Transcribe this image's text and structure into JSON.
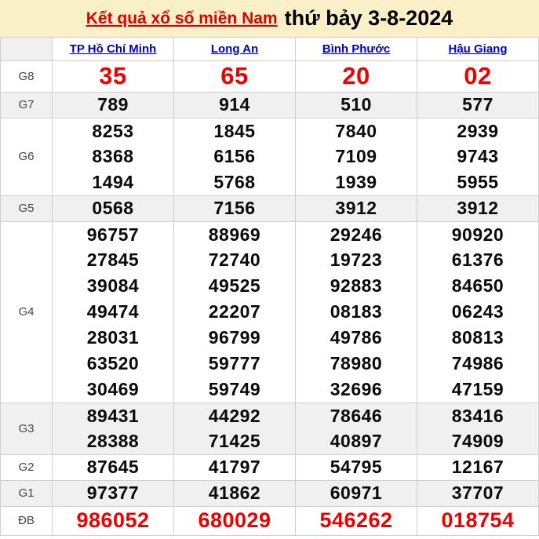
{
  "page_title": {
    "link_text": "Kết quả xổ số miền Nam",
    "date_text": "thứ bảy 3-8-2024"
  },
  "table": {
    "corner_label": "",
    "columns": [
      "TP Hồ Chí Minh",
      "Long An",
      "Bình Phước",
      "Hậu Giang"
    ],
    "prizes": [
      {
        "label": "G8",
        "emphasis": "red-large",
        "rows": [
          [
            "35",
            "65",
            "20",
            "02"
          ]
        ]
      },
      {
        "label": "G7",
        "emphasis": "none",
        "rows": [
          [
            "789",
            "914",
            "510",
            "577"
          ]
        ]
      },
      {
        "label": "G6",
        "emphasis": "none",
        "rows": [
          [
            "8253",
            "1845",
            "7840",
            "2939"
          ],
          [
            "8368",
            "6156",
            "7109",
            "9743"
          ],
          [
            "1494",
            "5768",
            "1939",
            "5955"
          ]
        ]
      },
      {
        "label": "G5",
        "emphasis": "none",
        "rows": [
          [
            "0568",
            "7156",
            "3912",
            "3912"
          ]
        ]
      },
      {
        "label": "G4",
        "emphasis": "none",
        "rows": [
          [
            "96757",
            "88969",
            "29246",
            "90920"
          ],
          [
            "27845",
            "72740",
            "19723",
            "61376"
          ],
          [
            "39084",
            "49525",
            "92883",
            "84650"
          ],
          [
            "49474",
            "22207",
            "08183",
            "06243"
          ],
          [
            "28031",
            "96799",
            "49786",
            "80813"
          ],
          [
            "63520",
            "59777",
            "78980",
            "74986"
          ],
          [
            "30469",
            "59749",
            "32696",
            "47159"
          ]
        ]
      },
      {
        "label": "G3",
        "emphasis": "none",
        "rows": [
          [
            "89431",
            "44292",
            "78646",
            "83416"
          ],
          [
            "28388",
            "71425",
            "40897",
            "74909"
          ]
        ]
      },
      {
        "label": "G2",
        "emphasis": "none",
        "rows": [
          [
            "87645",
            "41797",
            "54795",
            "12167"
          ]
        ]
      },
      {
        "label": "G1",
        "emphasis": "none",
        "rows": [
          [
            "97377",
            "41862",
            "60971",
            "37707"
          ]
        ]
      },
      {
        "label": "ĐB",
        "emphasis": "red",
        "rows": [
          [
            "986052",
            "680029",
            "546262",
            "018754"
          ]
        ]
      }
    ]
  },
  "colors": {
    "banner_bg": "#faf0c8",
    "title_red": "#e00000",
    "num_red": "#ee0000",
    "header_blue": "#0000cc",
    "stripe_gray": "#f0f0f0",
    "border_gray": "#cfcfcf",
    "num_black": "#0a0a0a",
    "label_gray": "#444444"
  }
}
